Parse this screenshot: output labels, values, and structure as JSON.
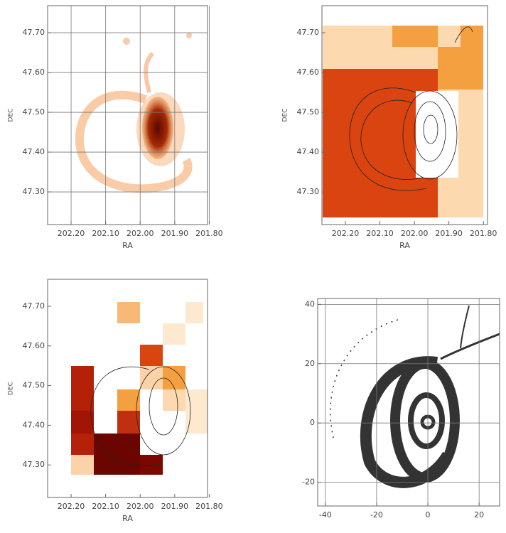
{
  "chart_data": [
    {
      "type": "image",
      "xlabel": "RA",
      "ylabel": "DEC",
      "xlim": [
        202.268,
        201.805
      ],
      "ylim": [
        47.218,
        47.768
      ],
      "xticks": [
        {
          "value": 202.2,
          "label": "202.20"
        },
        {
          "value": 202.1,
          "label": "202.10"
        },
        {
          "value": 202.0,
          "label": "202.00"
        },
        {
          "value": 201.9,
          "label": "201.90"
        },
        {
          "value": 201.8,
          "label": "201.80"
        }
      ],
      "yticks": [
        {
          "value": 47.3,
          "label": "47.30"
        },
        {
          "value": 47.4,
          "label": "47.40"
        },
        {
          "value": 47.5,
          "label": "47.50"
        },
        {
          "value": 47.6,
          "label": "47.60"
        },
        {
          "value": 47.7,
          "label": "47.70"
        }
      ],
      "grid": true
    },
    {
      "type": "image",
      "xlabel": "RA",
      "ylabel": "DEC",
      "xlim": [
        202.268,
        201.788
      ],
      "ylim": [
        47.218,
        47.768
      ],
      "xticks": [
        {
          "value": 202.2,
          "label": "202.20"
        },
        {
          "value": 202.1,
          "label": "202.10"
        },
        {
          "value": 202.0,
          "label": "202.00"
        },
        {
          "value": 201.9,
          "label": "201.90"
        },
        {
          "value": 201.8,
          "label": "201.80"
        }
      ],
      "yticks": [
        {
          "value": 47.3,
          "label": "47.30"
        },
        {
          "value": 47.4,
          "label": "47.40"
        },
        {
          "value": 47.5,
          "label": "47.50"
        },
        {
          "value": 47.6,
          "label": "47.60"
        },
        {
          "value": 47.7,
          "label": "47.70"
        }
      ],
      "grid": false
    },
    {
      "type": "image",
      "xlabel": "RA",
      "ylabel": "DEC",
      "xlim": [
        202.268,
        201.805
      ],
      "ylim": [
        47.218,
        47.768
      ],
      "xticks": [
        {
          "value": 202.2,
          "label": "202.20"
        },
        {
          "value": 202.1,
          "label": "202.10"
        },
        {
          "value": 202.0,
          "label": "202.00"
        },
        {
          "value": 201.9,
          "label": "201.90"
        },
        {
          "value": 201.8,
          "label": "201.80"
        }
      ],
      "yticks": [
        {
          "value": 47.3,
          "label": "47.30"
        },
        {
          "value": 47.4,
          "label": "47.40"
        },
        {
          "value": 47.5,
          "label": "47.50"
        },
        {
          "value": 47.6,
          "label": "47.60"
        },
        {
          "value": 47.7,
          "label": "47.70"
        }
      ],
      "grid": false
    },
    {
      "type": "image",
      "xlim": [
        -43,
        28
      ],
      "ylim": [
        -28,
        42
      ],
      "xticks": [
        -40,
        -20,
        0,
        20
      ],
      "yticks": [
        -20,
        0,
        20,
        40
      ],
      "grid": true
    }
  ]
}
